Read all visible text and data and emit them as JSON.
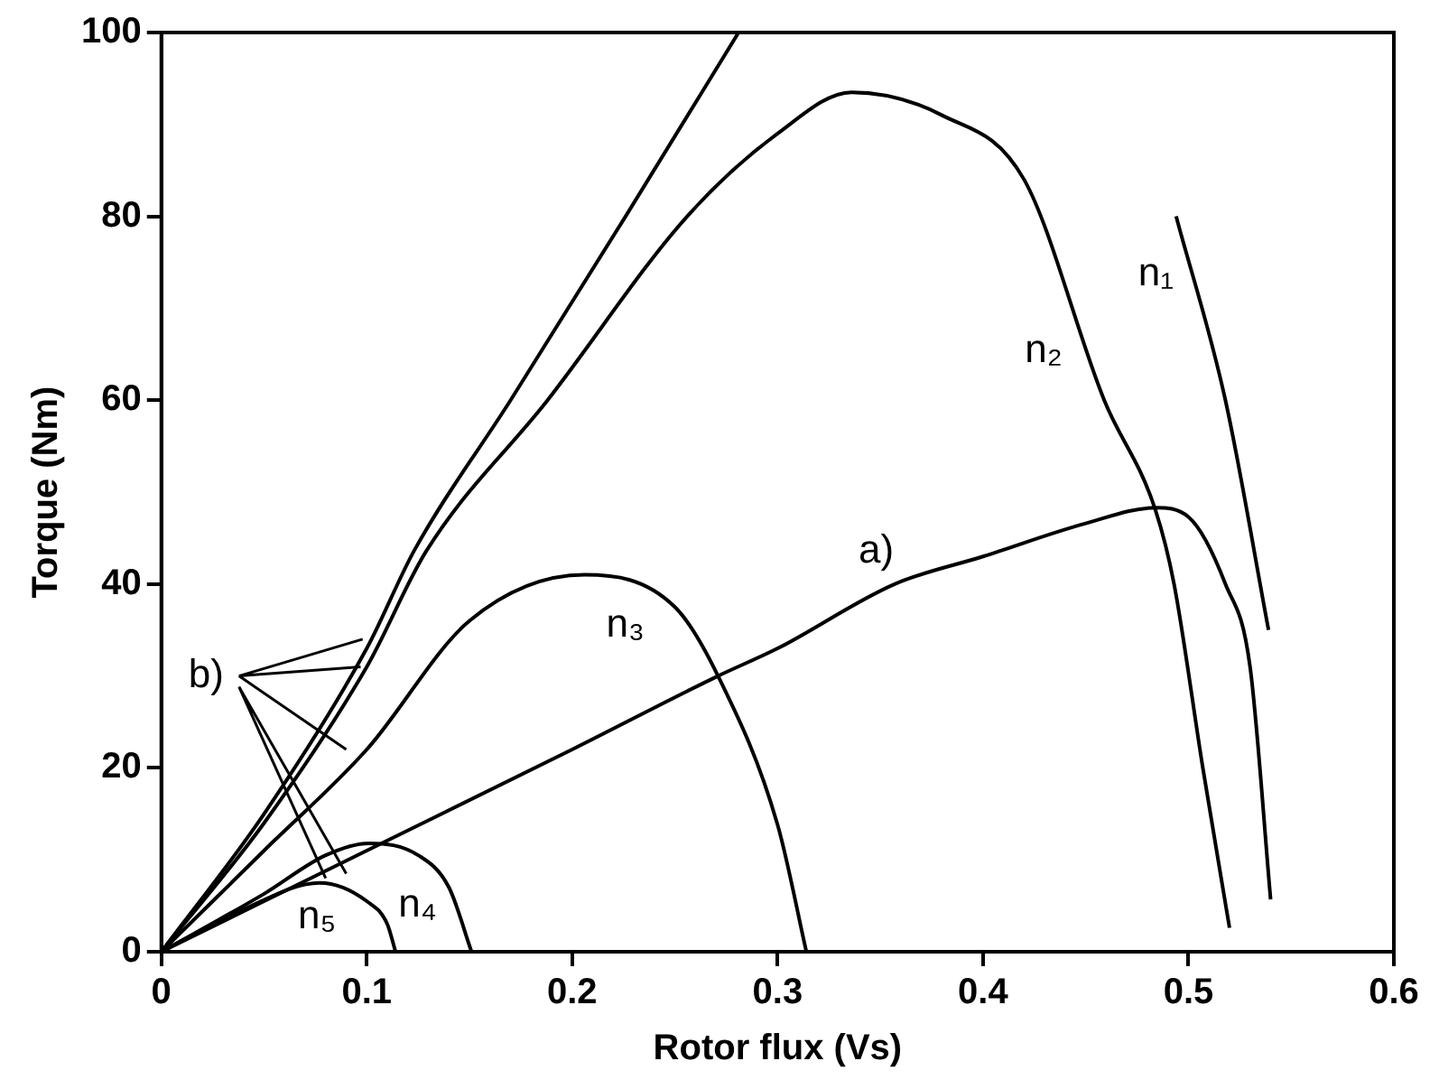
{
  "chart_data": {
    "type": "line",
    "xlabel": "Rotor flux (Vs)",
    "ylabel": "Torque (Nm)",
    "xlim": [
      0,
      0.6
    ],
    "xticks": [
      0,
      0.1,
      0.2,
      0.3,
      0.4,
      0.5,
      0.6
    ],
    "ylim": [
      0,
      100
    ],
    "yticks": [
      0,
      20,
      40,
      60,
      80,
      100
    ],
    "grid": false,
    "legend": false,
    "marker": "none",
    "line_style": "solid",
    "series": [
      {
        "name": "n₁",
        "color": "#000000",
        "x": [
          0,
          0.05,
          0.1,
          0.123,
          0.17,
          0.226,
          0.281,
          0.452,
          0.494,
          0.518,
          0.539
        ],
        "values": [
          0,
          15,
          33,
          43.6,
          60,
          80,
          100,
          null,
          80,
          60,
          35
        ]
      },
      {
        "name": "n₂",
        "color": "#000000",
        "x": [
          0,
          0.05,
          0.1,
          0.129,
          0.188,
          0.256,
          0.3,
          0.336,
          0.38,
          0.42,
          0.459,
          0.484,
          0.493,
          0.507,
          0.52
        ],
        "values": [
          0,
          14,
          31,
          43.6,
          60,
          80,
          89,
          93.5,
          91,
          84,
          60,
          48,
          40,
          20,
          2.6
        ]
      },
      {
        "name": "a)",
        "color": "#000000",
        "x": [
          0,
          0.1,
          0.2,
          0.271,
          0.3,
          0.357,
          0.4,
          0.45,
          0.484,
          0.5,
          0.518,
          0.53,
          0.54
        ],
        "values": [
          0,
          11,
          22,
          30,
          33,
          40,
          43,
          46.6,
          48.3,
          47.3,
          40,
          31,
          5.7
        ]
      },
      {
        "name": "n₃",
        "color": "#000000",
        "x": [
          0,
          0.05,
          0.1,
          0.15,
          0.206,
          0.25,
          0.271,
          0.3,
          0.314
        ],
        "values": [
          0,
          11,
          22,
          36,
          41,
          37.5,
          30,
          13.8,
          0
        ]
      },
      {
        "name": "n₄",
        "color": "#000000",
        "x": [
          0,
          0.05,
          0.08,
          0.101,
          0.125,
          0.14,
          0.151
        ],
        "values": [
          0,
          6.3,
          10.5,
          11.8,
          10.5,
          7,
          0
        ]
      },
      {
        "name": "n₅",
        "color": "#000000",
        "x": [
          0,
          0.04,
          0.077,
          0.1,
          0.11,
          0.114
        ],
        "values": [
          0,
          4.6,
          7.5,
          5.5,
          3,
          0
        ]
      }
    ],
    "annotations": [
      "b)"
    ]
  }
}
